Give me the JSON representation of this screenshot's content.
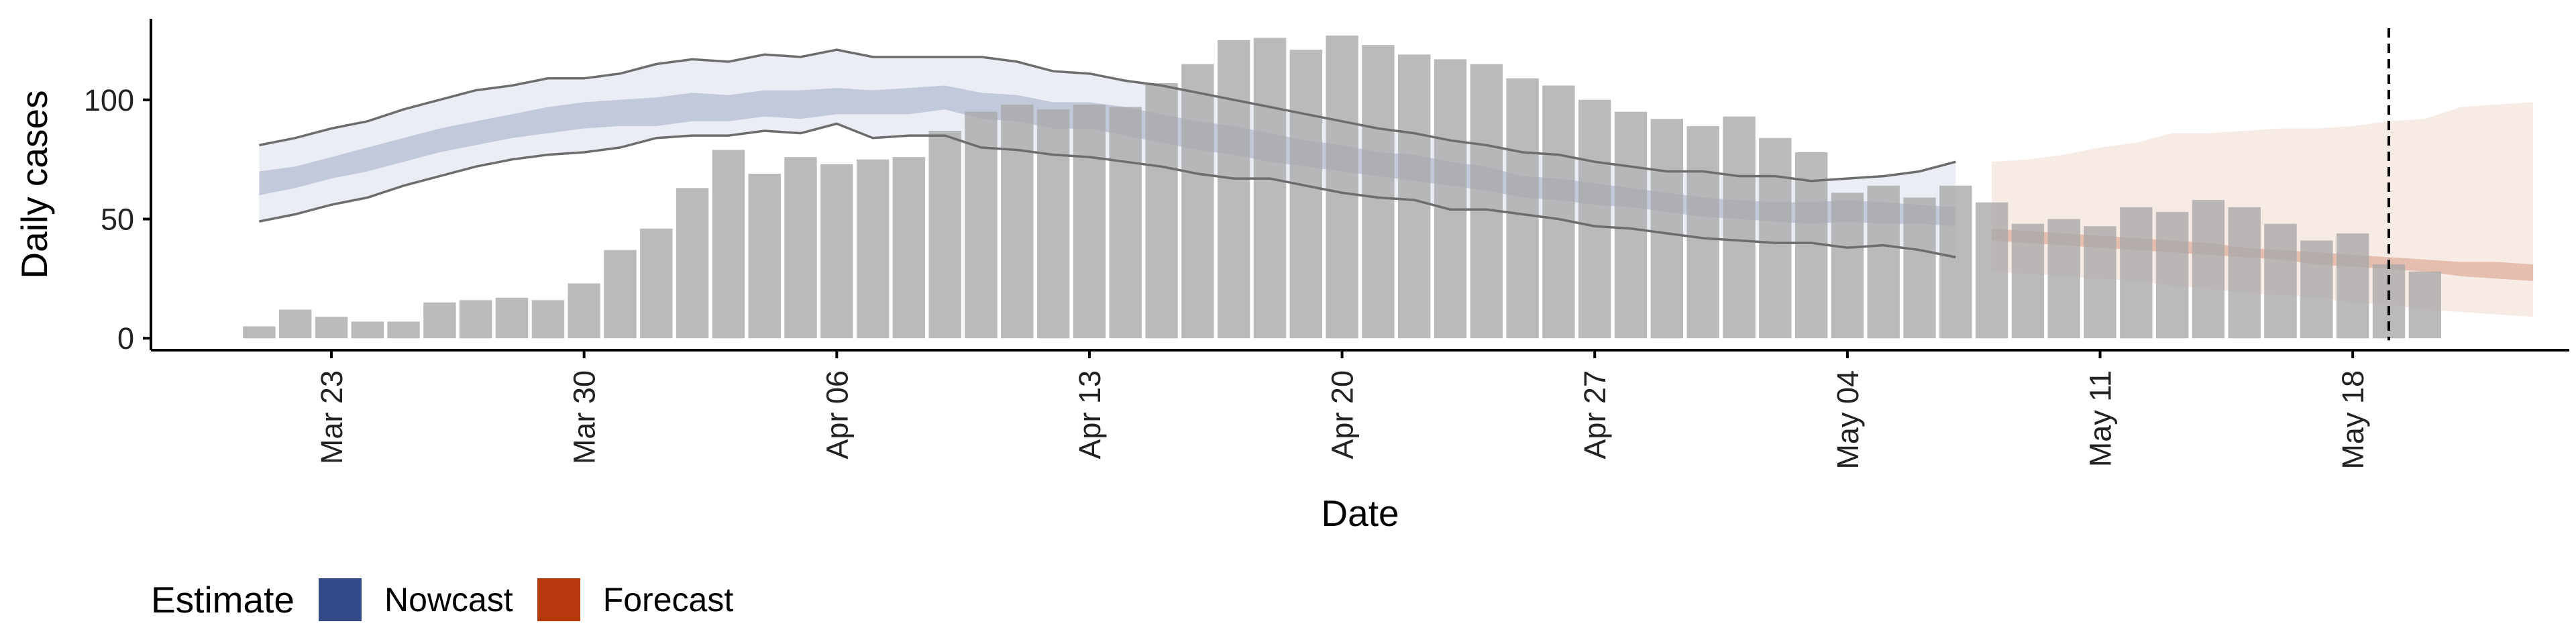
{
  "chart_data": {
    "type": "bar",
    "xlabel": "Date",
    "ylabel": "Daily cases",
    "xlim": [
      "2020-03-18",
      "2020-05-24"
    ],
    "ylim": [
      -5,
      134
    ],
    "yticks": [
      0,
      50,
      100
    ],
    "xticks": [
      "2020-03-23",
      "2020-03-30",
      "2020-04-06",
      "2020-04-13",
      "2020-04-20",
      "2020-04-27",
      "2020-05-04",
      "2020-05-11",
      "2020-05-18"
    ],
    "xtick_labels": [
      "Mar 23",
      "Mar 30",
      "Apr 06",
      "Apr 13",
      "Apr 20",
      "Apr 27",
      "May 04",
      "May 11",
      "May 18"
    ],
    "grid": false,
    "legend_position": "bottom-left",
    "reference_line": "2020-05-19",
    "bars": {
      "start_date": "2020-03-21",
      "values": [
        5,
        12,
        9,
        7,
        7,
        15,
        16,
        17,
        16,
        23,
        37,
        46,
        63,
        79,
        69,
        76,
        73,
        75,
        76,
        87,
        95,
        98,
        96,
        98,
        97,
        107,
        115,
        125,
        126,
        121,
        127,
        123,
        119,
        117,
        115,
        109,
        106,
        100,
        95,
        92,
        89,
        93,
        84,
        78,
        61,
        64,
        59,
        64,
        57,
        48,
        50,
        47,
        55,
        53,
        58,
        55,
        48,
        41,
        44,
        31,
        28
      ]
    },
    "series": [
      {
        "name": "Nowcast",
        "color": "#354a88",
        "start_date": "2020-03-21",
        "upper90": [
          81,
          84,
          88,
          91,
          96,
          100,
          104,
          106,
          109,
          109,
          111,
          115,
          117,
          116,
          119,
          118,
          121,
          118,
          118,
          118,
          118,
          116,
          112,
          111,
          108,
          106,
          103,
          100,
          97,
          94,
          91,
          88,
          86,
          83,
          81,
          78,
          77,
          74,
          72,
          70,
          70,
          68,
          68,
          66,
          67,
          68,
          70,
          74
        ],
        "upper50": [
          70,
          72,
          76,
          80,
          84,
          88,
          91,
          94,
          97,
          99,
          100,
          101,
          103,
          102,
          104,
          104,
          105,
          104,
          105,
          106,
          103,
          102,
          99,
          99,
          97,
          94,
          91,
          89,
          86,
          83,
          81,
          78,
          77,
          74,
          72,
          68,
          67,
          65,
          63,
          61,
          59,
          58,
          57,
          57,
          58,
          57,
          56,
          55
        ],
        "lower50": [
          60,
          63,
          67,
          70,
          74,
          78,
          81,
          84,
          86,
          88,
          89,
          89,
          91,
          91,
          93,
          92,
          94,
          94,
          94,
          96,
          92,
          91,
          88,
          88,
          85,
          82,
          79,
          77,
          74,
          72,
          70,
          68,
          66,
          64,
          62,
          59,
          58,
          56,
          55,
          53,
          51,
          50,
          49,
          48,
          49,
          48,
          48,
          47
        ],
        "lower90": [
          49,
          52,
          56,
          59,
          64,
          68,
          72,
          75,
          77,
          78,
          80,
          84,
          85,
          85,
          87,
          86,
          90,
          84,
          85,
          85,
          80,
          79,
          77,
          76,
          74,
          72,
          69,
          67,
          67,
          64,
          61,
          59,
          58,
          54,
          54,
          52,
          50,
          47,
          46,
          44,
          42,
          41,
          40,
          40,
          38,
          39,
          37,
          34
        ]
      },
      {
        "name": "Forecast",
        "color": "#b5390c",
        "start_date": "2020-05-08",
        "upper90": [
          74,
          75,
          77,
          80,
          82,
          86,
          86,
          87,
          88,
          88,
          89,
          91,
          92,
          97,
          98,
          99
        ],
        "upper50": [
          46,
          45,
          44,
          43,
          42,
          41,
          40,
          38,
          37,
          36,
          35,
          34,
          33,
          32,
          32,
          31
        ],
        "lower50": [
          41,
          40,
          39,
          38,
          37,
          36,
          35,
          34,
          33,
          31,
          30,
          29,
          28,
          26,
          25,
          24
        ],
        "lower90": [
          28,
          27,
          26,
          25,
          24,
          22,
          21,
          19,
          18,
          17,
          15,
          14,
          12,
          11,
          10,
          9
        ]
      }
    ]
  },
  "legend": {
    "title": "Estimate",
    "items": [
      {
        "label": "Nowcast",
        "color": "#354a88"
      },
      {
        "label": "Forecast",
        "color": "#b5390c"
      }
    ]
  }
}
